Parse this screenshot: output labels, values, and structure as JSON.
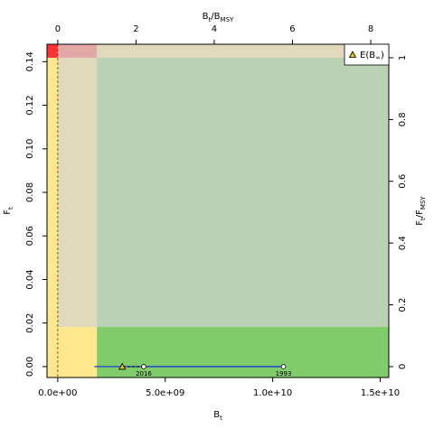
{
  "chart_data": {
    "type": "scatter",
    "title": "",
    "xlabel": "B",
    "xlabel_sub": "t",
    "ylabel": "F",
    "ylabel_sub": "t",
    "top_label": {
      "num": "B",
      "num_sub": "t",
      "den": "B",
      "den_sub": "MSY"
    },
    "right_label": {
      "num": "F",
      "num_sub": "t",
      "den": "F",
      "den_sub": "MSY"
    },
    "xlim": [
      -500000000,
      15400000000
    ],
    "ylim": [
      -0.005,
      0.148
    ],
    "x_ticks": [
      0,
      5000000000,
      10000000000,
      15000000000
    ],
    "x_tick_labels": [
      "0.0e+00",
      "5.0e+09",
      "1.0e+10",
      "1.5e+10"
    ],
    "y_ticks": [
      0.0,
      0.02,
      0.04,
      0.06,
      0.08,
      0.1,
      0.12,
      0.14
    ],
    "y_tick_labels": [
      "0.00",
      "0.02",
      "0.04",
      "0.06",
      "0.08",
      "0.10",
      "0.12",
      "0.14"
    ],
    "top_ticks": [
      0,
      2,
      4,
      6,
      8
    ],
    "top_tick_labels": [
      "0",
      "2",
      "4",
      "6",
      "8"
    ],
    "right_ticks": [
      0,
      0.2,
      0.4,
      0.6,
      0.8,
      1
    ],
    "right_tick_labels": [
      "0",
      "0.2",
      "0.4",
      "0.6",
      "0.8",
      "1"
    ],
    "bmsy": 1820000000,
    "fmsy": 0.1418,
    "blim_fraction": 0.25,
    "zone_colors": {
      "green": "#80cc6b",
      "light_green": "#bad2b3",
      "beige": "#e0d9bb",
      "yellow": "#ffe88d",
      "red": "#ff3333",
      "pink": "#e2a8a6",
      "trajectory": "#2450c8"
    },
    "series": [
      {
        "x": [
          10500000000,
          4000000000
        ],
        "y": [
          0.0,
          0.0
        ],
        "labels": [
          "1993",
          "2016"
        ]
      }
    ],
    "prediction": {
      "x": [
        4000000000,
        3000000000
      ],
      "y": [
        0.0,
        0.0
      ]
    },
    "equilibrium": {
      "x": 3000000000,
      "y": 0.0
    },
    "interval": {
      "x": [
        1700000000,
        10600000000
      ],
      "y": 0.0
    },
    "legend": {
      "label": "E(B",
      "label_sub": "∞",
      "label_end": ")",
      "placement": "top-right"
    }
  }
}
